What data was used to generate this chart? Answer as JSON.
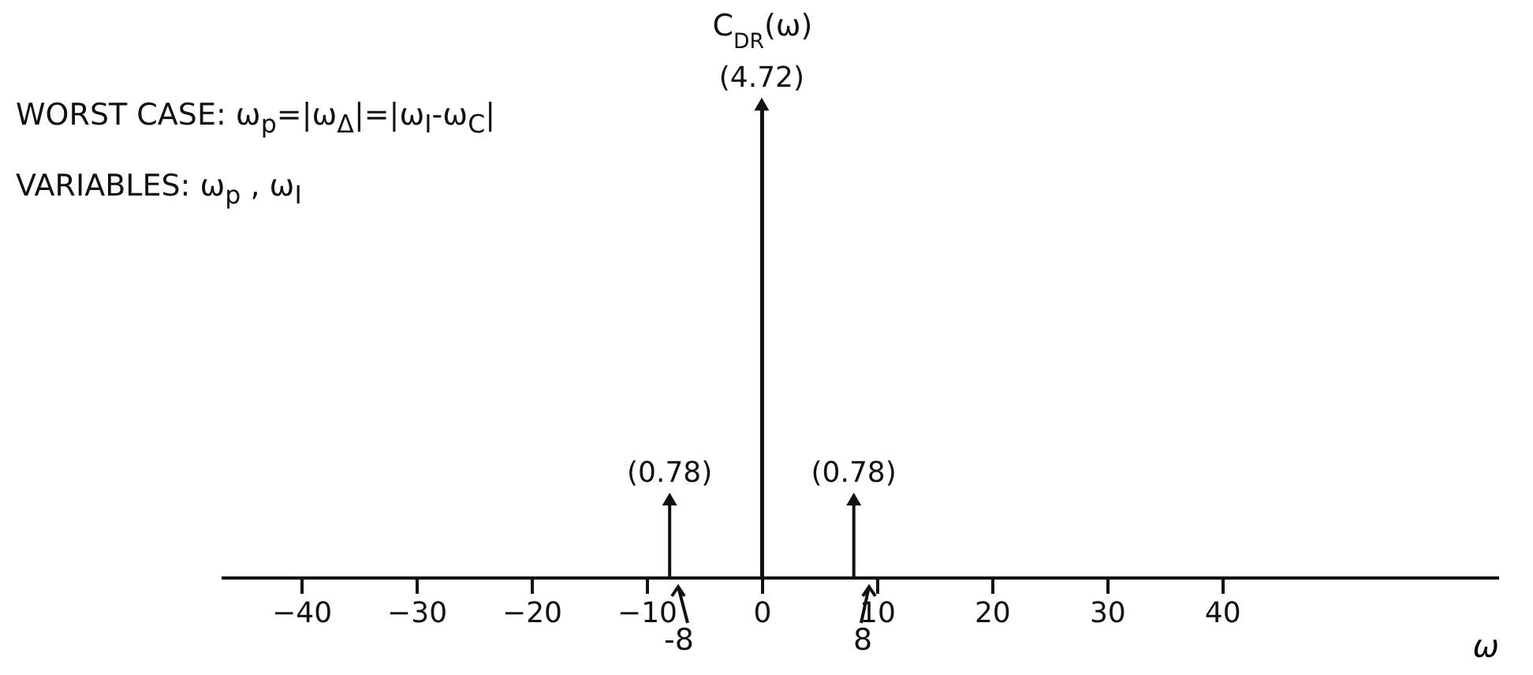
{
  "chart_data": {
    "type": "lollipop",
    "x": [
      -8,
      0,
      8
    ],
    "values": [
      0.78,
      4.72,
      0.78
    ],
    "value_labels": [
      "(0.78)",
      "(4.72)",
      "(0.78)"
    ],
    "color": "#111111",
    "marker": "triangle",
    "ylabel": "C$_{DR}$(ω)",
    "xlabel": "ω",
    "xlim": [
      -47,
      64
    ],
    "xticks": [
      -40,
      -30,
      -20,
      -10,
      0,
      10,
      20,
      30,
      40
    ],
    "annotations": [
      "WORST CASE: ω$_{p}$=|ω$_{Δ}$|=|ω$_{I}$-ω$_{C}$|",
      "VARIABLES: ω$_{p}$ , ω$_{I}$",
      "-8",
      "8"
    ]
  }
}
